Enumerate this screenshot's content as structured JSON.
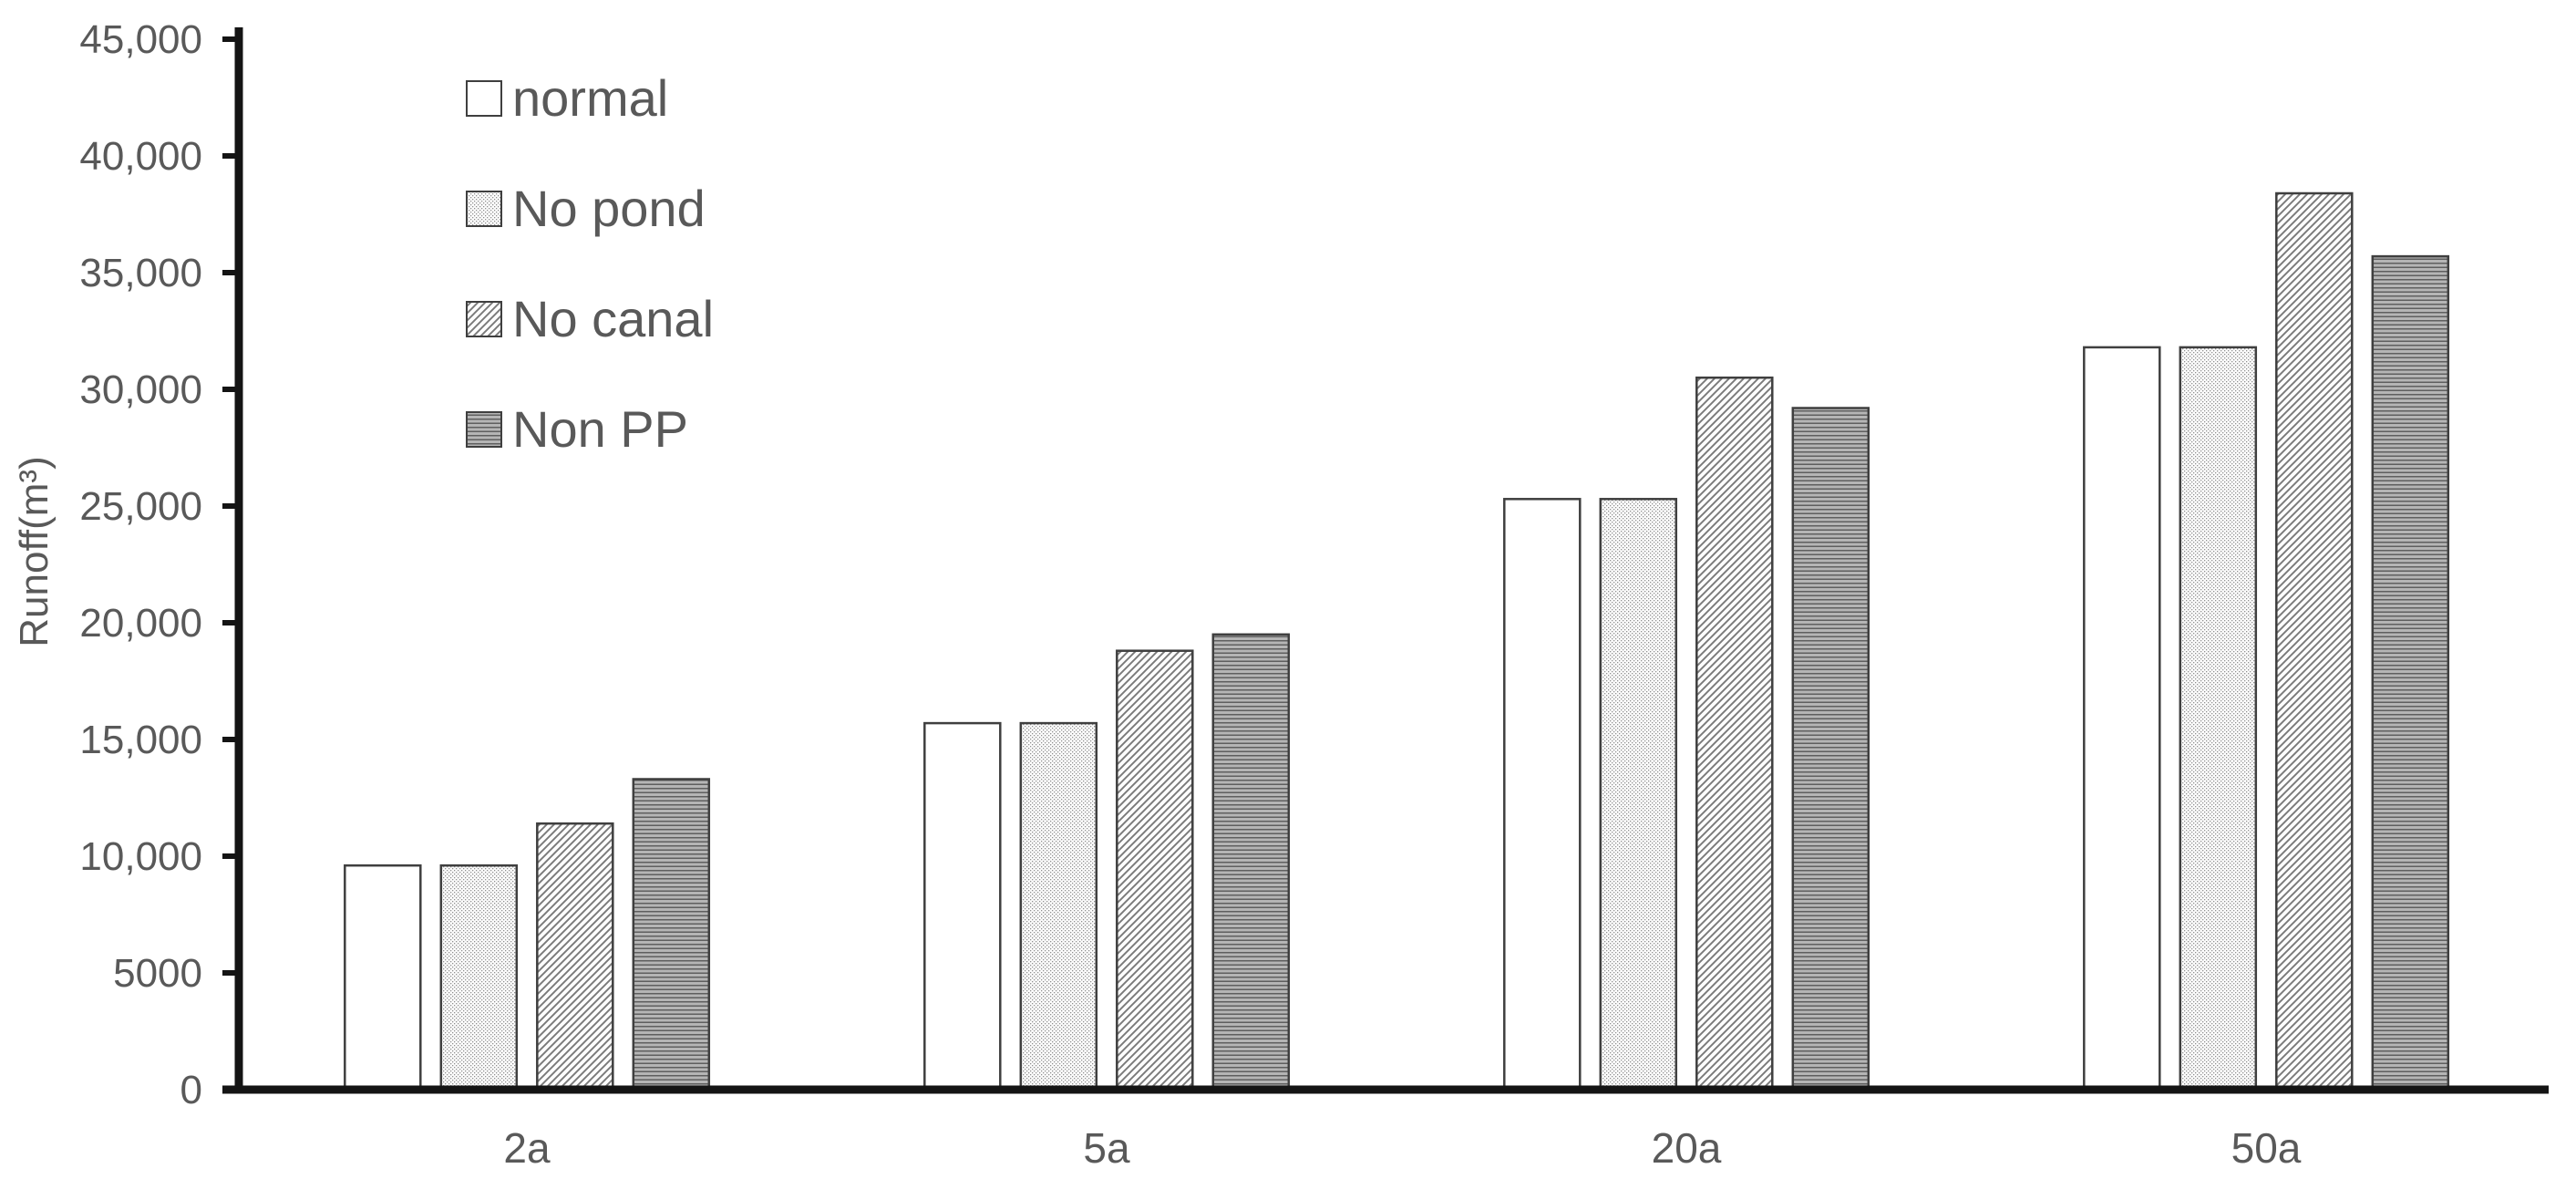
{
  "chart_data": {
    "type": "bar",
    "title": "",
    "xlabel": "",
    "ylabel": "Runoff(m³)",
    "categories": [
      "2a",
      "5a",
      "20a",
      "50a"
    ],
    "series": [
      {
        "name": "normal",
        "pattern": "solid-white",
        "values": [
          9600,
          15700,
          25300,
          31800
        ]
      },
      {
        "name": "No pond",
        "pattern": "dots",
        "values": [
          9600,
          15700,
          25300,
          31800
        ]
      },
      {
        "name": "No canal",
        "pattern": "diagonal-hatch",
        "values": [
          11400,
          18800,
          30500,
          38400
        ]
      },
      {
        "name": "Non PP",
        "pattern": "horizontal-lines",
        "values": [
          13300,
          19500,
          29200,
          35700
        ]
      }
    ],
    "y_axis": {
      "min": 0,
      "max": 45000,
      "tick_step": 5000,
      "tick_labels": [
        "0",
        "5000",
        "10,000",
        "15,000",
        "20,000",
        "25,000",
        "30,000",
        "35,000",
        "40,000",
        "45,000"
      ]
    },
    "legend_position": "top-left",
    "grid": false,
    "colors": {
      "text": "#595959",
      "axis": "#141414",
      "bar_outline": "#3f3f3f",
      "dot_fill": "#8f8f8f",
      "hatch_line": "#7a7a7a",
      "hline_dark": "#5f5f5f",
      "hline_bg": "#b5b5b5"
    }
  }
}
